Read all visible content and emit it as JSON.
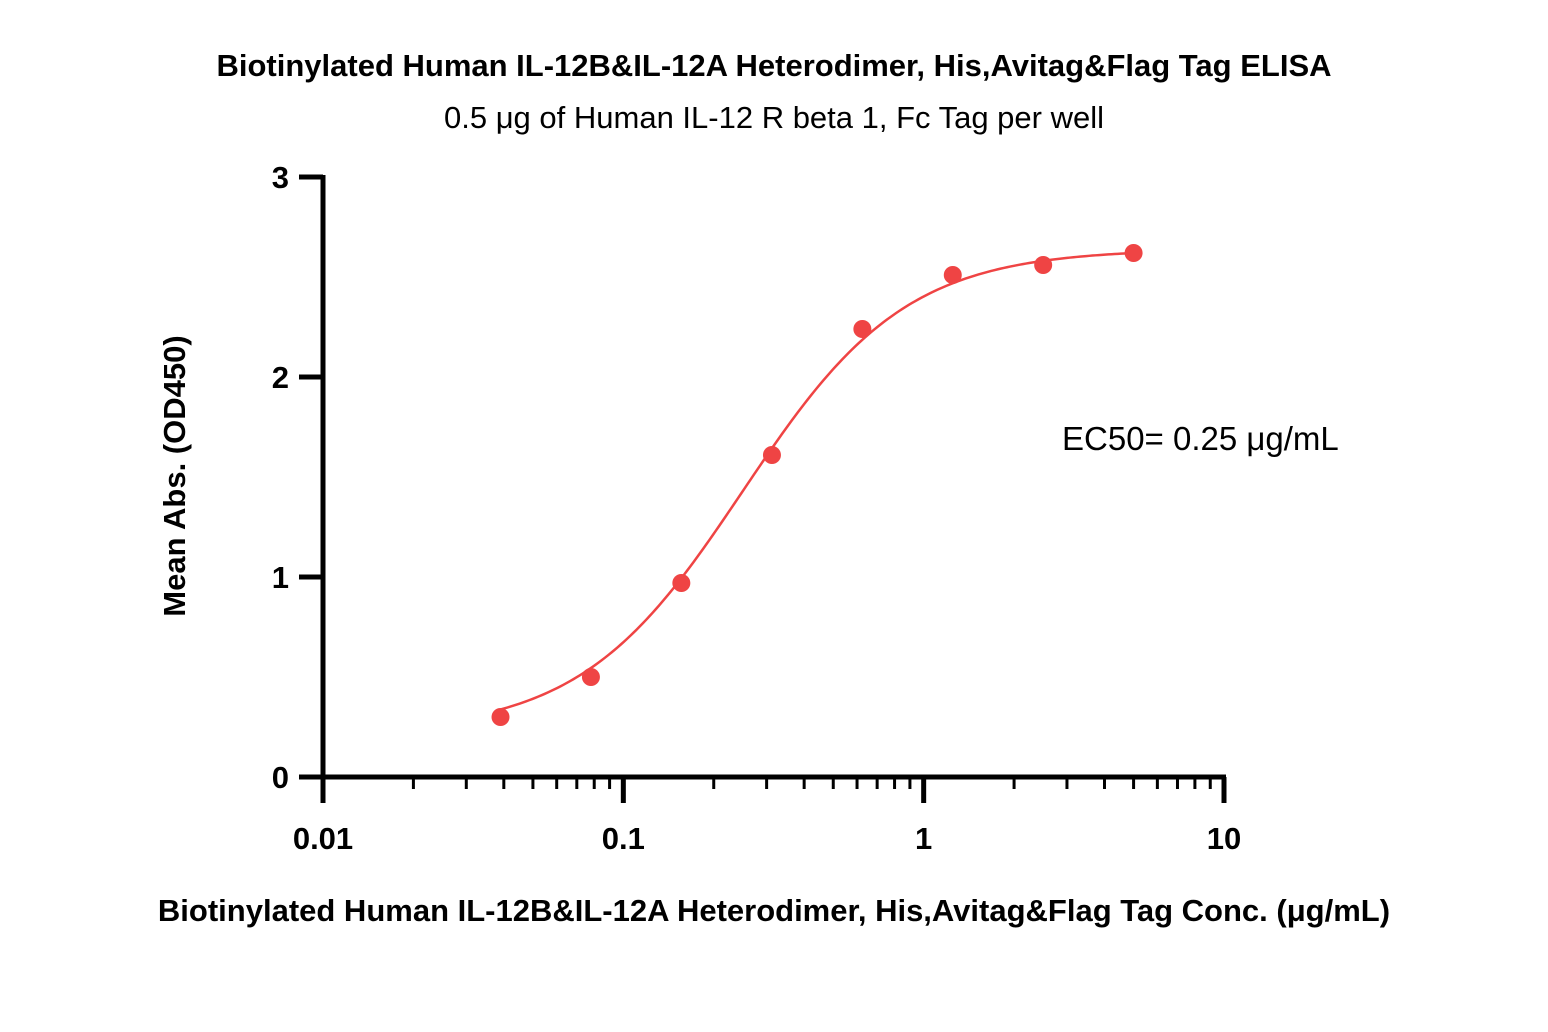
{
  "chart_data": {
    "type": "scatter",
    "title": "Biotinylated Human IL-12B&IL-12A Heterodimer, His,Avitag&Flag Tag ELISA",
    "subtitle": "0.5 μg of Human IL-12 R beta 1, Fc Tag per well",
    "xlabel": "Biotinylated Human IL-12B&IL-12A Heterodimer, His,Avitag&Flag Tag Conc. (μg/mL)",
    "ylabel": "Mean Abs. (OD450)",
    "x_scale": "log",
    "xlim": [
      0.01,
      10
    ],
    "ylim": [
      0,
      3
    ],
    "x_ticks": [
      "0.01",
      "0.1",
      "1",
      "10"
    ],
    "y_ticks": [
      "0",
      "1",
      "2",
      "3"
    ],
    "annotation": "EC50= 0.25 μg/mL",
    "color": "#ef4444",
    "series": [
      {
        "x": [
          0.039,
          0.078,
          0.156,
          0.3125,
          0.625,
          1.25,
          2.5,
          5
        ],
        "y": [
          0.3,
          0.5,
          0.97,
          1.61,
          2.24,
          2.51,
          2.56,
          2.62
        ]
      }
    ],
    "fit": {
      "bottom": 0.22,
      "top": 2.64,
      "ec50": 0.25,
      "hill": 1.6
    }
  }
}
